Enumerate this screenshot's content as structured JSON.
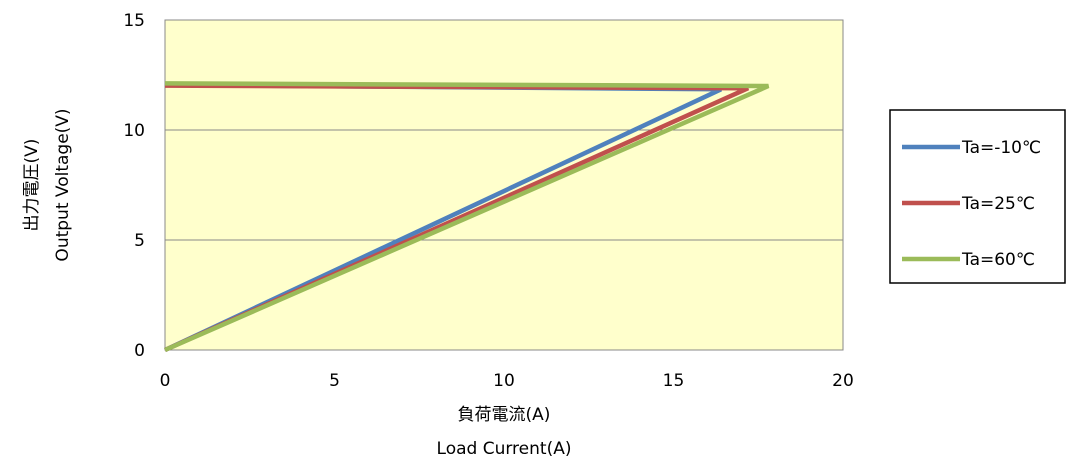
{
  "chart_data": {
    "type": "line",
    "xlabel": "負荷電流(A)",
    "xlabel_en": "Load Current(A)",
    "ylabel": "出力電圧(V)",
    "ylabel_en": "Output  Voltage(V)",
    "xlim": [
      0,
      20
    ],
    "ylim": [
      0,
      15
    ],
    "xticks": [
      0,
      5,
      10,
      15,
      20
    ],
    "yticks": [
      0,
      5,
      10,
      15
    ],
    "grid": true,
    "legend_position": "right",
    "plot_background": "#ffffcc",
    "series": [
      {
        "name": "Ta=-10℃",
        "color": "#4f81bd",
        "points": [
          [
            0,
            12.05
          ],
          [
            16.4,
            11.85
          ],
          [
            0,
            0
          ]
        ]
      },
      {
        "name": "Ta=25℃",
        "color": "#c0504d",
        "points": [
          [
            0,
            12.02
          ],
          [
            17.2,
            11.9
          ],
          [
            0,
            0
          ]
        ]
      },
      {
        "name": "Ta=60℃",
        "color": "#9bbb59",
        "points": [
          [
            0,
            12.12
          ],
          [
            17.8,
            12.0
          ],
          [
            0,
            0
          ]
        ]
      }
    ]
  }
}
